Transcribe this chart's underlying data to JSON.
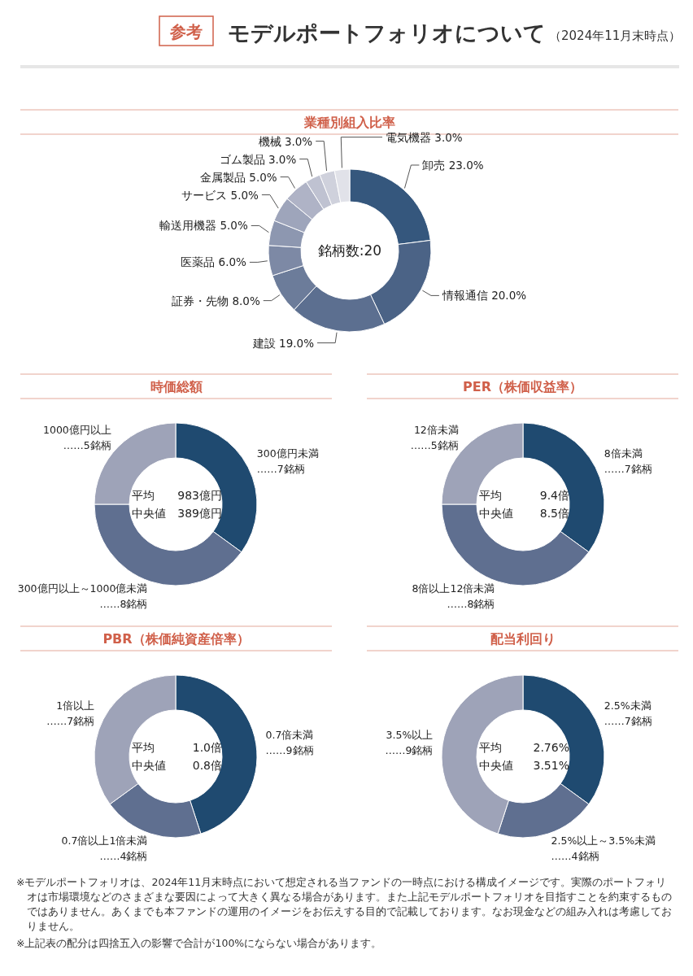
{
  "chart_data": [
    {
      "type": "other",
      "title": "参考",
      "subtitle": "モデルポートフォリオについて",
      "annotations": [
        "（2024年11月末時点）"
      ]
    },
    {
      "type": "donut",
      "title": "業種別組入比率",
      "categories": [
        "卸売",
        "情報通信",
        "建設",
        "証券・先物",
        "医薬品",
        "輸送用機器",
        "サービス",
        "金属製品",
        "ゴム製品",
        "機械",
        "電気機器"
      ],
      "values": [
        23,
        20,
        19,
        8,
        6,
        5,
        5,
        5,
        3,
        3,
        3
      ],
      "value_labels": [
        "23.0%",
        "20.0%",
        "19.0%",
        "8.0%",
        "6.0%",
        "5.0%",
        "5.0%",
        "5.0%",
        "3.0%",
        "3.0%",
        "3.0%"
      ],
      "colors": [
        "#35577d",
        "#4b6386",
        "#5c6f90",
        "#6c7c9a",
        "#7d89a5",
        "#8d97b0",
        "#9ea5bb",
        "#afb3c6",
        "#bfc2d1",
        "#cfd1dc",
        "#e1e2e9"
      ],
      "annotations": [
        "銘柄数:20"
      ]
    },
    {
      "type": "donut",
      "title": "時価総額",
      "categories": [
        "300億円未満",
        "300億円以上～1000億未満",
        "1000億円以上"
      ],
      "values": [
        7,
        8,
        5
      ],
      "value_labels": [
        "……7銘柄",
        "……8銘柄",
        "……5銘柄"
      ],
      "colors": [
        "#1f4a70",
        "#5f6f90",
        "#9ea3b8"
      ],
      "annotations": [
        "平均",
        "983億円",
        "中央値",
        "389億円"
      ]
    },
    {
      "type": "donut",
      "title": "PER（株価収益率）",
      "categories": [
        "8倍未満",
        "8倍以上12倍未満",
        "12倍未満"
      ],
      "values": [
        7,
        8,
        5
      ],
      "value_labels": [
        "……7銘柄",
        "……8銘柄",
        "……5銘柄"
      ],
      "colors": [
        "#1f4a70",
        "#5f6f90",
        "#9ea3b8"
      ],
      "annotations": [
        "平均",
        "9.4倍",
        "中央値",
        "8.5倍"
      ]
    },
    {
      "type": "donut",
      "title": "PBR（株価純資産倍率）",
      "categories": [
        "0.7倍未満",
        "0.7倍以上1倍未満",
        "1倍以上"
      ],
      "values": [
        9,
        4,
        7
      ],
      "value_labels": [
        "……9銘柄",
        "……4銘柄",
        "……7銘柄"
      ],
      "colors": [
        "#1f4a70",
        "#5f6f90",
        "#9ea3b8"
      ],
      "annotations": [
        "平均",
        "1.0倍",
        "中央値",
        "0.8倍"
      ]
    },
    {
      "type": "donut",
      "title": "配当利回り",
      "categories": [
        "2.5%未満",
        "2.5%以上～3.5%未満",
        "3.5%以上"
      ],
      "values": [
        7,
        4,
        9
      ],
      "value_labels": [
        "……7銘柄",
        "……4銘柄",
        "……9銘柄"
      ],
      "colors": [
        "#1f4a70",
        "#5f6f90",
        "#9ea3b8"
      ],
      "annotations": [
        "平均",
        "2.76%",
        "中央値",
        "3.51%"
      ]
    },
    {
      "type": "other",
      "annotations": [
        "※モデルポートフォリオは、2024年11月末時点において想定される当ファンドの一時点における構成イメージです。実際のポートフォリオは市場環境などのさまざまな要因によって大きく異なる場合があります。また上記モデルポートフォリオを目指すことを約束するものではありません。あくまでも本ファンドの運用のイメージをお伝えする目的で記載しております。なお現金などの組み入れは考慮しておりません。",
        "※上記表の配分は四捨五入の影響で合計が100%にならない場合があります。"
      ]
    }
  ]
}
